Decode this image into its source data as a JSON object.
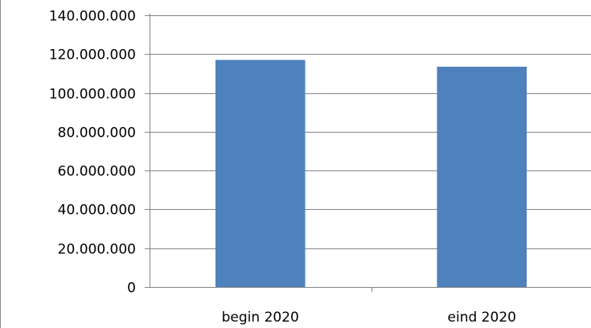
{
  "chart_data": {
    "type": "bar",
    "categories": [
      "begin 2020",
      "eind 2020"
    ],
    "values": [
      117000000,
      113500000
    ],
    "ylim": [
      0,
      140000000
    ],
    "y_ticks": [
      0,
      20000000,
      40000000,
      60000000,
      80000000,
      100000000,
      120000000,
      140000000
    ],
    "y_tick_labels": [
      "0",
      "20.000.000",
      "40.000.000",
      "60.000.000",
      "80.000.000",
      "100.000.000",
      "120.000.000",
      "140.000.000"
    ],
    "title": "",
    "xlabel": "",
    "ylabel": "",
    "grid": true,
    "legend": "none",
    "colors": {
      "bar": "#4f81bd",
      "grid": "#868686",
      "axis": "#868686",
      "text": "#000000"
    }
  }
}
